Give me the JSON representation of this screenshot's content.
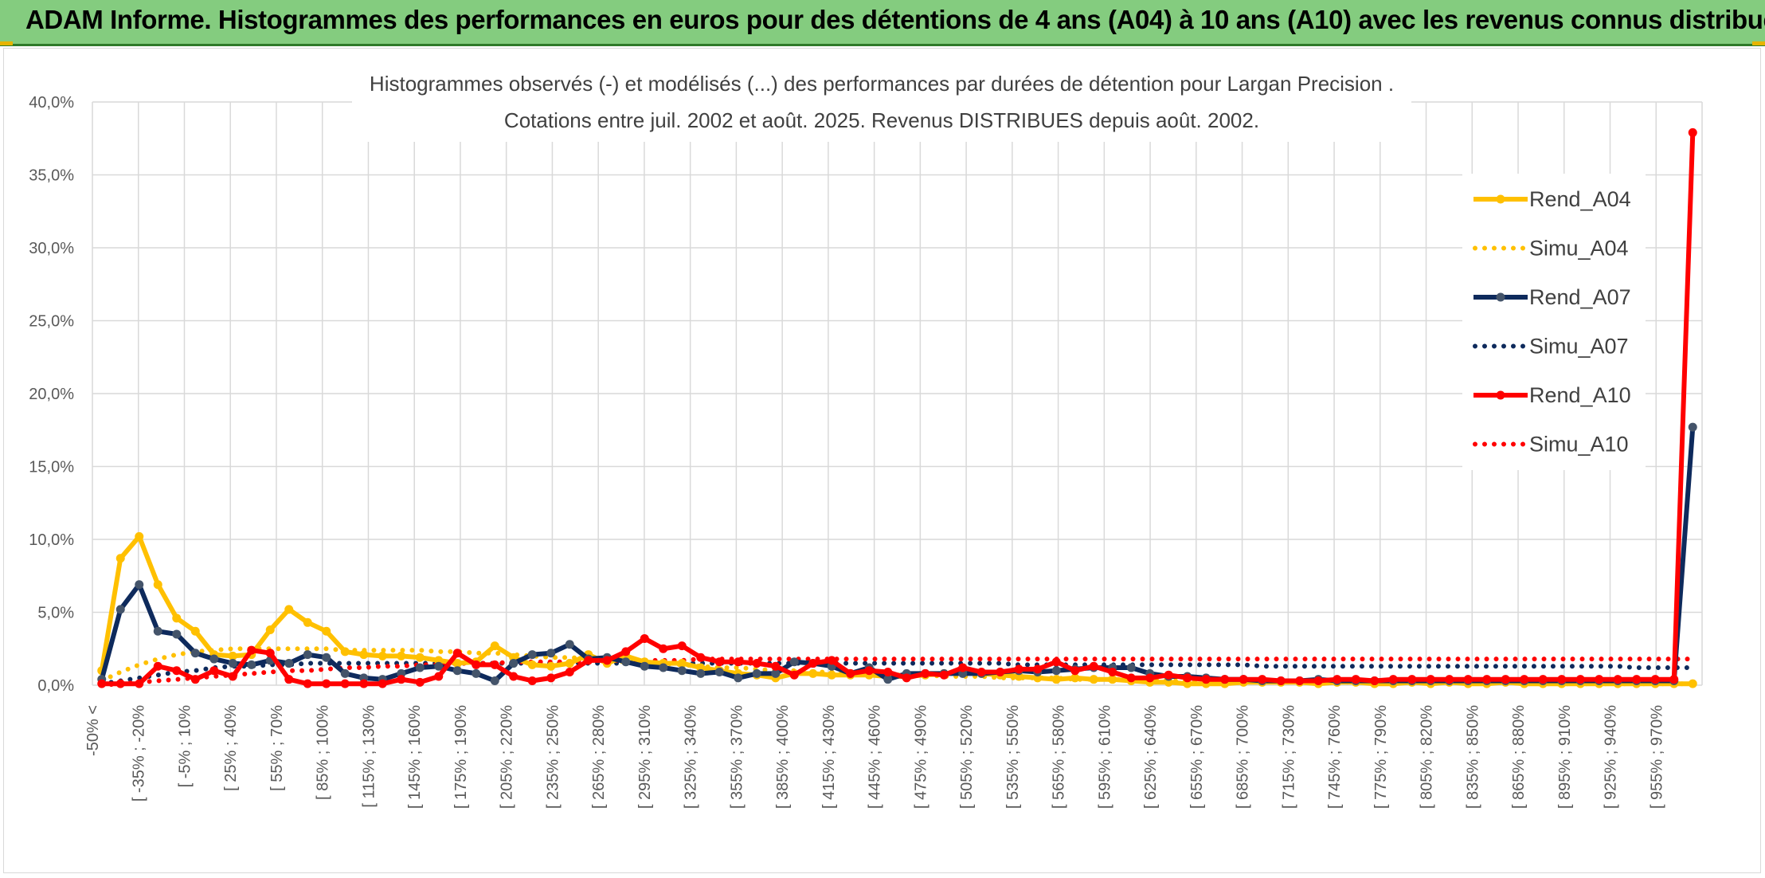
{
  "banner": {
    "title": "ADAM Informe. Histogrammes des performances en euros pour des détentions de 4 ans (A04) à 10 ans (A10) avec les revenus connus distribués"
  },
  "colors": {
    "banner_bg": "#84cc7f",
    "A04": "#ffc000",
    "A07": "#0e2a5c",
    "A10": "#ff0000",
    "grid": "#d9d9d9"
  },
  "chart_data": {
    "type": "line",
    "title_line1": "Histogrammes observés (-) et modélisés (...) des performances par durées de détention pour Largan Precision .",
    "title_line2": "Cotations entre juil. 2002 et août. 2025. Revenus DISTRIBUES depuis août. 2002.",
    "xlabel": "",
    "ylabel": "",
    "ylim": [
      0,
      40
    ],
    "y_ticks": [
      "0,0%",
      "5,0%",
      "10,0%",
      "15,0%",
      "20,0%",
      "25,0%",
      "30,0%",
      "35,0%",
      "40,0%"
    ],
    "grid": true,
    "legend_position": "right",
    "x_tick_labels": [
      "-50% <",
      "[ -35% ; -20%",
      "[ -5% ; 10%",
      "[ 25% ; 40%",
      "[ 55% ; 70%",
      "[ 85% ; 100%",
      "[ 115% ; 130%",
      "[ 145% ; 160%",
      "[ 175% ; 190%",
      "[ 205% ; 220%",
      "[ 235% ; 250%",
      "[ 265% ; 280%",
      "[ 295% ; 310%",
      "[ 325% ; 340%",
      "[ 355% ; 370%",
      "[ 385% ; 400%",
      "[ 415% ; 430%",
      "[ 445% ; 460%",
      "[ 475% ; 490%",
      "[ 505% ; 520%",
      "[ 535% ; 550%",
      "[ 565% ; 580%",
      "[ 595% ; 610%",
      "[ 625% ; 640%",
      "[ 655% ; 670%",
      "[ 685% ; 700%",
      "[ 715% ; 730%",
      "[ 745% ; 760%",
      "[ 775% ; 790%",
      "[ 805% ; 820%",
      "[ 835% ; 850%",
      "[ 865% ; 880%",
      "[ 895% ; 910%",
      "[ 925% ; 940%",
      "[ 955% ; 970%"
    ],
    "series": [
      {
        "name": "Rend_A04",
        "style": "solid",
        "color": "#ffc000",
        "values": [
          1.0,
          8.7,
          10.2,
          6.9,
          4.6,
          3.7,
          2.1,
          2.0,
          2.1,
          3.8,
          5.2,
          4.3,
          3.7,
          2.3,
          2.1,
          2.0,
          2.0,
          1.9,
          1.7,
          1.5,
          1.6,
          2.7,
          1.9,
          1.4,
          1.3,
          1.5,
          2.1,
          1.5,
          2.0,
          1.6,
          1.5,
          1.5,
          1.2,
          1.0,
          0.8,
          0.7,
          0.5,
          0.8,
          0.8,
          0.7,
          0.7,
          0.7,
          0.6,
          0.6,
          0.7,
          0.8,
          0.9,
          0.8,
          0.7,
          0.6,
          0.5,
          0.4,
          0.5,
          0.4,
          0.4,
          0.3,
          0.2,
          0.2,
          0.1,
          0.1,
          0.1,
          0.2,
          0.2,
          0.2,
          0.2,
          0.1,
          0.2,
          0.2,
          0.1,
          0.1,
          0.2,
          0.1,
          0.2,
          0.1,
          0.1,
          0.2,
          0.1,
          0.1,
          0.1,
          0.1,
          0.1,
          0.1,
          0.1,
          0.1,
          0.1,
          0.1
        ]
      },
      {
        "name": "Simu_A04",
        "style": "dotted",
        "color": "#ffc000",
        "values": [
          0.3,
          0.9,
          1.4,
          1.8,
          2.1,
          2.3,
          2.4,
          2.5,
          2.5,
          2.5,
          2.5,
          2.5,
          2.5,
          2.4,
          2.4,
          2.4,
          2.4,
          2.4,
          2.3,
          2.3,
          2.2,
          2.2,
          2.1,
          2.0,
          1.9,
          1.9,
          1.8,
          1.7,
          1.6,
          1.5,
          1.5,
          1.4,
          1.3,
          1.2,
          1.2,
          1.1,
          1.0,
          1.0,
          0.9,
          0.9,
          0.8,
          0.8,
          0.7,
          0.7,
          0.7,
          0.6,
          0.6,
          0.6,
          0.5,
          0.5,
          0.5,
          0.5,
          0.4,
          0.4,
          0.4,
          0.4,
          0.4,
          0.3,
          0.3,
          0.3,
          0.3,
          0.3,
          0.3,
          0.3,
          0.2,
          0.2,
          0.2,
          0.2,
          0.2,
          0.2,
          0.2,
          0.2,
          0.2,
          0.2,
          0.2,
          0.2,
          0.1,
          0.1,
          0.1,
          0.1,
          0.1,
          0.1,
          0.1,
          0.1,
          0.1,
          0.1
        ]
      },
      {
        "name": "Rend_A07",
        "style": "solid",
        "color": "#0e2a5c",
        "values": [
          0.4,
          5.2,
          6.9,
          3.7,
          3.5,
          2.2,
          1.8,
          1.5,
          1.4,
          1.7,
          1.5,
          2.1,
          1.9,
          0.8,
          0.5,
          0.4,
          0.8,
          1.2,
          1.3,
          1.0,
          0.8,
          0.3,
          1.5,
          2.1,
          2.2,
          2.8,
          1.8,
          1.9,
          1.6,
          1.3,
          1.2,
          1.0,
          0.8,
          0.9,
          0.5,
          0.8,
          0.8,
          1.6,
          1.5,
          1.3,
          0.8,
          1.2,
          0.4,
          0.8,
          0.8,
          0.8,
          0.8,
          0.8,
          0.9,
          1.0,
          0.9,
          1.0,
          1.1,
          1.2,
          1.2,
          1.2,
          0.8,
          0.6,
          0.6,
          0.5,
          0.4,
          0.4,
          0.3,
          0.3,
          0.3,
          0.4,
          0.3,
          0.3,
          0.3,
          0.3,
          0.3,
          0.3,
          0.3,
          0.3,
          0.3,
          0.3,
          0.3,
          0.3,
          0.3,
          0.3,
          0.3,
          0.3,
          0.3,
          0.3,
          0.3,
          17.7
        ]
      },
      {
        "name": "Simu_A07",
        "style": "dotted",
        "color": "#0e2a5c",
        "values": [
          0.1,
          0.3,
          0.5,
          0.7,
          0.9,
          1.0,
          1.2,
          1.3,
          1.3,
          1.4,
          1.4,
          1.5,
          1.5,
          1.5,
          1.5,
          1.5,
          1.5,
          1.5,
          1.5,
          1.5,
          1.5,
          1.5,
          1.5,
          1.5,
          1.5,
          1.5,
          1.5,
          1.5,
          1.5,
          1.5,
          1.5,
          1.5,
          1.5,
          1.5,
          1.5,
          1.5,
          1.5,
          1.5,
          1.5,
          1.5,
          1.5,
          1.5,
          1.5,
          1.5,
          1.5,
          1.5,
          1.5,
          1.5,
          1.5,
          1.4,
          1.4,
          1.4,
          1.4,
          1.4,
          1.4,
          1.4,
          1.4,
          1.4,
          1.4,
          1.4,
          1.4,
          1.4,
          1.3,
          1.3,
          1.3,
          1.3,
          1.3,
          1.3,
          1.3,
          1.3,
          1.3,
          1.3,
          1.3,
          1.3,
          1.3,
          1.3,
          1.3,
          1.3,
          1.3,
          1.3,
          1.3,
          1.3,
          1.2,
          1.2,
          1.2,
          1.2
        ]
      },
      {
        "name": "Rend_A10",
        "style": "solid",
        "color": "#ff0000",
        "values": [
          0.1,
          0.1,
          0.1,
          1.3,
          1.0,
          0.4,
          1.0,
          0.6,
          2.4,
          2.2,
          0.4,
          0.1,
          0.1,
          0.1,
          0.1,
          0.1,
          0.4,
          0.2,
          0.6,
          2.2,
          1.4,
          1.4,
          0.6,
          0.3,
          0.5,
          0.9,
          1.7,
          1.7,
          2.3,
          3.2,
          2.5,
          2.7,
          1.9,
          1.6,
          1.6,
          1.5,
          1.3,
          0.7,
          1.5,
          1.7,
          0.8,
          1.0,
          0.9,
          0.5,
          0.8,
          0.7,
          1.2,
          0.9,
          0.9,
          1.1,
          1.1,
          1.6,
          1.0,
          1.3,
          0.9,
          0.5,
          0.5,
          0.7,
          0.5,
          0.4,
          0.4,
          0.4,
          0.4,
          0.3,
          0.3,
          0.3,
          0.4,
          0.4,
          0.3,
          0.4,
          0.4,
          0.4,
          0.4,
          0.4,
          0.4,
          0.4,
          0.4,
          0.4,
          0.4,
          0.4,
          0.4,
          0.4,
          0.4,
          0.4,
          0.4,
          37.9
        ]
      },
      {
        "name": "Simu_A10",
        "style": "dotted",
        "color": "#ff0000",
        "values": [
          0.0,
          0.1,
          0.2,
          0.3,
          0.4,
          0.5,
          0.6,
          0.7,
          0.8,
          0.9,
          1.0,
          1.0,
          1.1,
          1.2,
          1.2,
          1.3,
          1.3,
          1.4,
          1.4,
          1.5,
          1.5,
          1.5,
          1.6,
          1.6,
          1.6,
          1.6,
          1.7,
          1.7,
          1.7,
          1.7,
          1.7,
          1.7,
          1.8,
          1.8,
          1.8,
          1.8,
          1.8,
          1.8,
          1.8,
          1.8,
          1.8,
          1.8,
          1.8,
          1.8,
          1.8,
          1.8,
          1.8,
          1.8,
          1.8,
          1.8,
          1.8,
          1.8,
          1.8,
          1.8,
          1.8,
          1.8,
          1.8,
          1.8,
          1.8,
          1.8,
          1.8,
          1.8,
          1.8,
          1.8,
          1.8,
          1.8,
          1.8,
          1.8,
          1.8,
          1.8,
          1.8,
          1.8,
          1.8,
          1.8,
          1.8,
          1.8,
          1.8,
          1.8,
          1.8,
          1.8,
          1.8,
          1.8,
          1.8,
          1.8,
          1.8,
          1.8
        ]
      }
    ]
  }
}
